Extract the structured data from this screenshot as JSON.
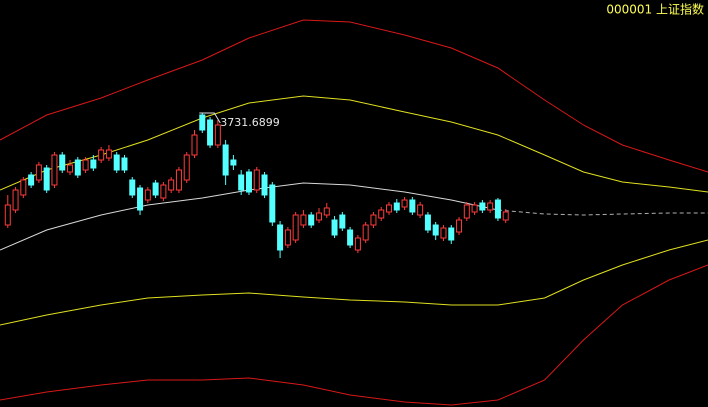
{
  "chart_data": {
    "type": "candlestick",
    "title": "000001 上证指数",
    "title_color": "#ffff54",
    "background": "#000000",
    "up_color": "#ff3c3c",
    "down_color": "#54ffff",
    "xlim": [
      -1,
      90
    ],
    "ylim": [
      1968,
      4410
    ],
    "x": [
      0,
      1,
      2,
      3,
      4,
      5,
      6,
      7,
      8,
      9,
      10,
      11,
      12,
      13,
      14,
      15,
      16,
      17,
      18,
      19,
      20,
      21,
      22,
      23,
      24,
      25,
      26,
      27,
      28,
      29,
      30,
      31,
      32,
      33,
      34,
      35,
      36,
      37,
      38,
      39,
      40,
      41,
      42,
      43,
      44,
      45,
      46,
      47,
      48,
      49,
      50,
      51,
      52,
      53,
      54,
      55,
      56,
      57,
      58,
      59,
      60,
      61,
      62,
      63,
      64
    ],
    "open": [
      3060,
      3150,
      3240,
      3360,
      3330,
      3402,
      3300,
      3480,
      3378,
      3450,
      3390,
      3450,
      3450,
      3462,
      3480,
      3462,
      3330,
      3282,
      3210,
      3312,
      3222,
      3270,
      3270,
      3330,
      3480,
      3720,
      3690,
      3540,
      3540,
      3450,
      3360,
      3378,
      3270,
      3360,
      3300,
      3060,
      2940,
      2970,
      3060,
      3120,
      3090,
      3120,
      3090,
      3120,
      3030,
      2910,
      2970,
      3060,
      3102,
      3138,
      3192,
      3168,
      3210,
      3120,
      3120,
      3060,
      2982,
      3042,
      3018,
      3102,
      3138,
      3192,
      3150,
      3210,
      3090
    ],
    "high": [
      3240,
      3288,
      3348,
      3378,
      3438,
      3420,
      3498,
      3498,
      3450,
      3468,
      3468,
      3480,
      3528,
      3540,
      3498,
      3480,
      3348,
      3300,
      3288,
      3330,
      3318,
      3348,
      3408,
      3498,
      3630,
      3731.6899,
      3708,
      3690,
      3570,
      3480,
      3390,
      3396,
      3408,
      3378,
      3318,
      3084,
      3048,
      3138,
      3150,
      3138,
      3162,
      3192,
      3114,
      3138,
      3048,
      3000,
      3078,
      3138,
      3168,
      3198,
      3216,
      3228,
      3228,
      3198,
      3138,
      3078,
      3060,
      3060,
      3108,
      3198,
      3198,
      3210,
      3210,
      3222,
      3156
    ],
    "low": [
      3042,
      3132,
      3222,
      3282,
      3312,
      3252,
      3282,
      3372,
      3360,
      3342,
      3372,
      3384,
      3432,
      3444,
      3372,
      3372,
      3222,
      3120,
      3192,
      3222,
      3204,
      3252,
      3252,
      3312,
      3462,
      3612,
      3522,
      3522,
      3300,
      3390,
      3240,
      3240,
      3252,
      3222,
      3054,
      2862,
      2922,
      2952,
      3042,
      3042,
      3072,
      3102,
      2982,
      3024,
      2922,
      2892,
      2952,
      3042,
      3084,
      3120,
      3132,
      3150,
      3120,
      3102,
      3012,
      2970,
      2964,
      2946,
      3000,
      3084,
      3120,
      3132,
      3132,
      3084,
      3072
    ],
    "close": [
      3180,
      3270,
      3330,
      3300,
      3420,
      3270,
      3480,
      3390,
      3420,
      3360,
      3450,
      3402,
      3510,
      3510,
      3390,
      3390,
      3240,
      3150,
      3270,
      3240,
      3300,
      3330,
      3390,
      3480,
      3600,
      3630,
      3540,
      3660,
      3360,
      3420,
      3270,
      3258,
      3390,
      3240,
      3078,
      2910,
      3030,
      3120,
      3120,
      3060,
      3132,
      3162,
      3000,
      3042,
      2940,
      2982,
      3060,
      3120,
      3150,
      3180,
      3150,
      3210,
      3138,
      3180,
      3030,
      3000,
      3042,
      2970,
      3090,
      3180,
      3180,
      3150,
      3192,
      3102,
      3138
    ],
    "lines": [
      {
        "color": "#d81818",
        "dashed": false,
        "x": [
          -1,
          5,
          12,
          18,
          25,
          31,
          38,
          44,
          51,
          57,
          63,
          69,
          74,
          79,
          85,
          90
        ],
        "values": [
          3570,
          3720,
          3822,
          3930,
          4050,
          4182,
          4290,
          4278,
          4200,
          4122,
          4002,
          3810,
          3660,
          3540,
          3450,
          3378
        ]
      },
      {
        "color": "#e0e020",
        "dashed": false,
        "x": [
          -1,
          5,
          12,
          18,
          25,
          31,
          38,
          44,
          51,
          57,
          63,
          69,
          74,
          79,
          85,
          90
        ],
        "values": [
          3270,
          3390,
          3480,
          3570,
          3702,
          3792,
          3834,
          3810,
          3738,
          3678,
          3600,
          3480,
          3378,
          3318,
          3288,
          3258
        ]
      },
      {
        "color": "#d8d8d8",
        "dashed": false,
        "x": [
          -1,
          5,
          12,
          18,
          25,
          31,
          38,
          44,
          51,
          57,
          63
        ],
        "values": [
          2910,
          3030,
          3120,
          3180,
          3222,
          3270,
          3312,
          3300,
          3258,
          3210,
          3150
        ]
      },
      {
        "color": "#b0b0b0",
        "dashed": true,
        "x": [
          63,
          69,
          74,
          79,
          85,
          90
        ],
        "values": [
          3150,
          3126,
          3120,
          3126,
          3132,
          3132
        ]
      },
      {
        "color": "#e0e020",
        "dashed": false,
        "x": [
          -1,
          5,
          12,
          18,
          25,
          31,
          38,
          44,
          51,
          57,
          63,
          69,
          74,
          79,
          85,
          90
        ],
        "values": [
          2460,
          2520,
          2580,
          2622,
          2640,
          2652,
          2628,
          2610,
          2598,
          2580,
          2580,
          2622,
          2730,
          2820,
          2910,
          2970
        ]
      },
      {
        "color": "#d81818",
        "dashed": false,
        "x": [
          -1,
          5,
          12,
          18,
          25,
          31,
          38,
          44,
          51,
          57,
          63,
          69,
          74,
          79,
          85,
          90
        ],
        "values": [
          2010,
          2058,
          2100,
          2130,
          2130,
          2142,
          2100,
          2040,
          1998,
          1980,
          2010,
          2130,
          2370,
          2580,
          2730,
          2820
        ]
      }
    ],
    "annotations": [
      {
        "x": 25,
        "value": 3731.6899,
        "label": "3731.6899"
      }
    ]
  }
}
